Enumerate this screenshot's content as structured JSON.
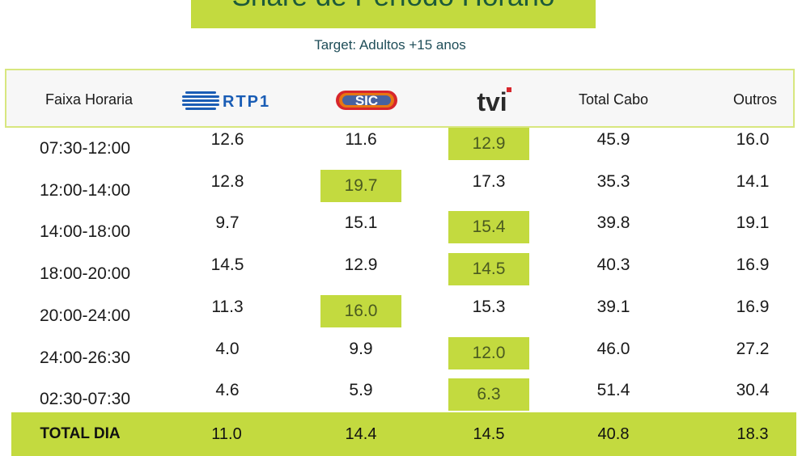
{
  "title": "Share de Período Horário",
  "subtitle": "Target: Adultos +15 anos",
  "colors": {
    "accent": "#c3da3f",
    "header_bg": "#f7f7f7",
    "title_text": "#1c5a3a",
    "rtp_blue": "#1a5db5",
    "sic_red": "#d7262c",
    "tvi_dark": "#2a2a2a"
  },
  "header": {
    "faixa_label": "Faixa Horaria",
    "channels": [
      {
        "name": "RTP1",
        "logo": "rtp1-logo"
      },
      {
        "name": "SIC",
        "logo": "sic-logo"
      },
      {
        "name": "tvi",
        "logo": "tvi-logo"
      }
    ],
    "total_cabo_label": "Total Cabo",
    "outros_label": "Outros"
  },
  "chart_data": {
    "type": "table",
    "columns": [
      "Faixa Horaria",
      "RTP1",
      "SIC",
      "TVI",
      "Total Cabo",
      "Outros"
    ],
    "rows": [
      {
        "faixa": "07:30-12:00",
        "values": [
          "12.6",
          "11.6",
          "12.9",
          "45.9",
          "16.0"
        ],
        "highlight": 2
      },
      {
        "faixa": "12:00-14:00",
        "values": [
          "12.8",
          "19.7",
          "17.3",
          "35.3",
          "14.1"
        ],
        "highlight": 1
      },
      {
        "faixa": "14:00-18:00",
        "values": [
          "9.7",
          "15.1",
          "15.4",
          "39.8",
          "19.1"
        ],
        "highlight": 2
      },
      {
        "faixa": "18:00-20:00",
        "values": [
          "14.5",
          "12.9",
          "14.5",
          "40.3",
          "16.9"
        ],
        "highlight": 2
      },
      {
        "faixa": "20:00-24:00",
        "values": [
          "11.3",
          "16.0",
          "15.3",
          "39.1",
          "16.9"
        ],
        "highlight": 1
      },
      {
        "faixa": "24:00-26:30",
        "values": [
          "4.0",
          "9.9",
          "12.0",
          "46.0",
          "27.2"
        ],
        "highlight": 2
      },
      {
        "faixa": "02:30-07:30",
        "values": [
          "4.6",
          "5.9",
          "6.3",
          "51.4",
          "30.4"
        ],
        "highlight": 2
      }
    ],
    "total": {
      "label": "TOTAL DIA",
      "values": [
        "11.0",
        "14.4",
        "14.5",
        "40.8",
        "18.3"
      ]
    }
  }
}
